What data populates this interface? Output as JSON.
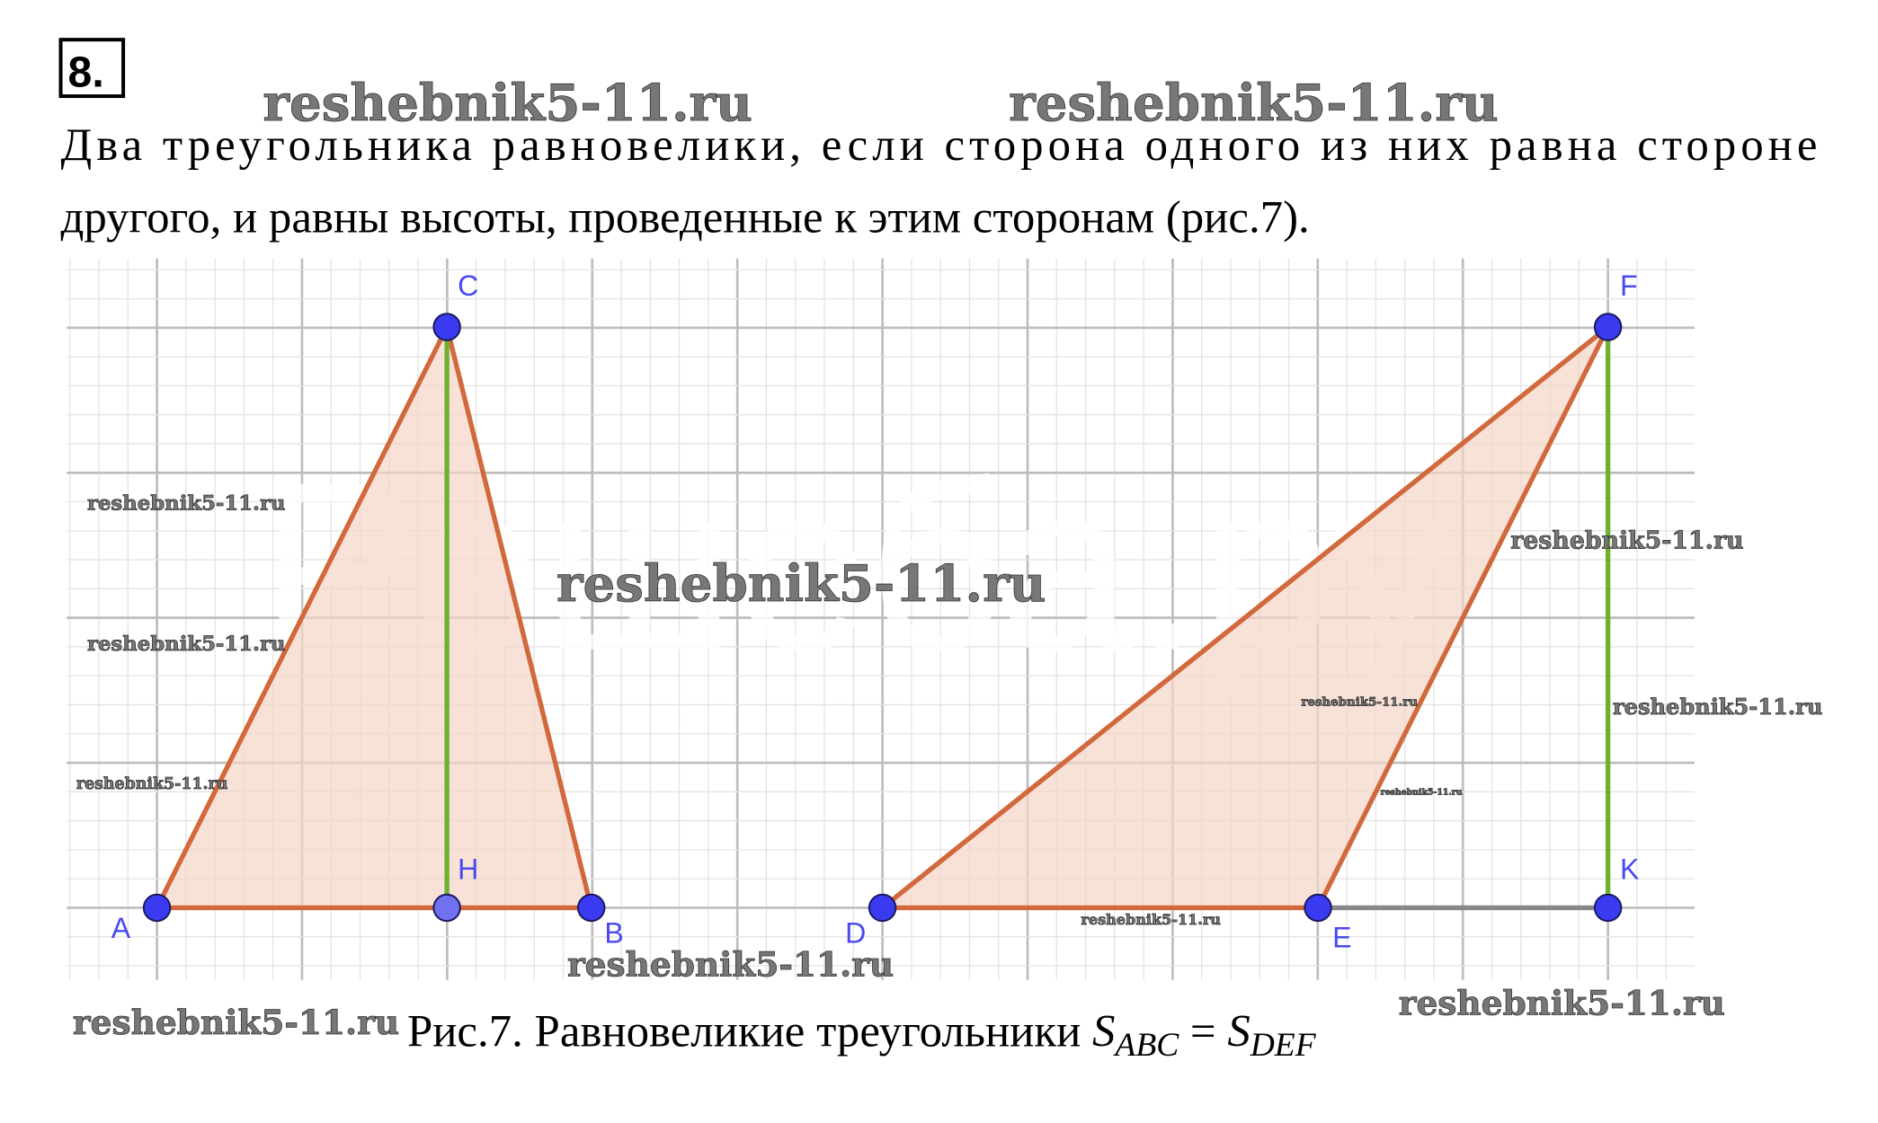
{
  "problem_number": "8.",
  "text_line1": "Два треугольника равновелики, если сторона одного из них равна стороне",
  "text_line2": "другого, и равны высоты, проведенные к этим сторонам (рис.7).",
  "caption": {
    "prefix": "Рис.7. Равновеликие треугольники ",
    "s": "S",
    "sub1": "ABC",
    "eq": " = ",
    "sub2": "DEF"
  },
  "points": {
    "A": "A",
    "B": "B",
    "C": "C",
    "H": "H",
    "D": "D",
    "E": "E",
    "F": "F",
    "K": "K"
  },
  "watermark": "reshebnik5-11.ru",
  "watermark_large": "Решеба.ру",
  "colors": {
    "side": "#d2693c",
    "fill": "#f5d5c8",
    "height": "#70b030",
    "point": "#3a3af0",
    "grid": "#c8c8c8",
    "extension": "#888888"
  }
}
